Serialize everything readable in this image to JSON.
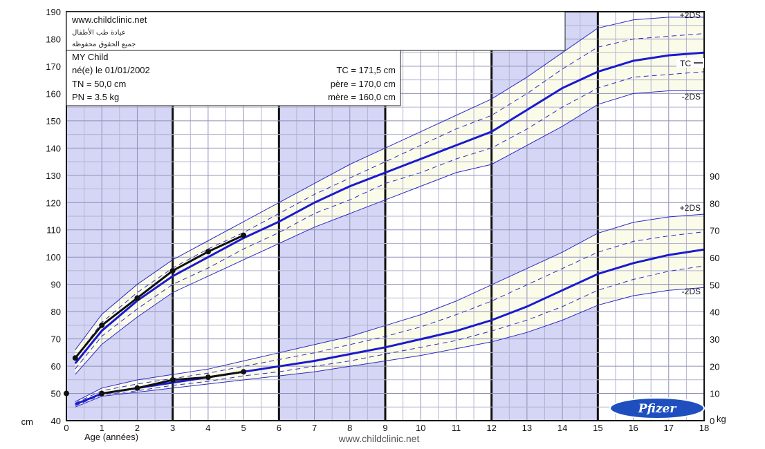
{
  "chart_data": {
    "type": "line",
    "header": {
      "site": "www.childclinic.net",
      "arabic_line1": "عيادة طب الأطفال",
      "arabic_line2": "جميع الحقوق محفوظة",
      "child_name": "MY Child",
      "birth": "né(e) le 01/01/2002",
      "tn": "TN = 50,0 cm",
      "pn": "PN = 3.5 kg",
      "tc": "TC = 171,5 cm",
      "pere": "père = 170,0 cm",
      "mere": "mère = 160,0 cm"
    },
    "xlabel": "Age (années)",
    "left_unit": "cm",
    "right_unit": "kg",
    "footer": "www.childclinic.net",
    "logo": "Pfizer",
    "xlim": [
      0,
      18
    ],
    "ylim_left": [
      40,
      190
    ],
    "ylim_right": [
      0,
      90
    ],
    "x_ticks": [
      0,
      1,
      2,
      3,
      4,
      5,
      6,
      7,
      8,
      9,
      10,
      11,
      12,
      13,
      14,
      15,
      16,
      17,
      18
    ],
    "y_ticks_left": [
      40,
      50,
      60,
      70,
      80,
      90,
      100,
      110,
      120,
      130,
      140,
      150,
      160,
      170,
      180,
      190
    ],
    "y_ticks_right": [
      0,
      10,
      20,
      30,
      40,
      50,
      60,
      70,
      80,
      90
    ],
    "grid": true,
    "labels": {
      "height_plus2": "+2DS",
      "height_minus2": "-2DS",
      "height_tc": "TC",
      "weight_plus2": "+2DS",
      "weight_minus2": "-2DS"
    },
    "colors": {
      "band": "#fbfbea",
      "column_shade": "#d5d5f5",
      "reference_line": "#2a2acc",
      "mean_line": "#1a1ad0",
      "patient_line": "#111111"
    },
    "height_reference": {
      "x": [
        0.25,
        1,
        2,
        3,
        4,
        5,
        6,
        7,
        8,
        9,
        10,
        11,
        12,
        13,
        14,
        15,
        16,
        17,
        18
      ],
      "plus2ds": [
        66,
        79,
        90,
        99,
        106,
        113,
        120,
        127,
        134,
        140,
        146,
        152,
        158,
        166,
        175,
        184,
        187,
        188,
        188
      ],
      "plus1ds": [
        63,
        76,
        87,
        96,
        103,
        109,
        116,
        123,
        129,
        135,
        141,
        147,
        152,
        160,
        169,
        177,
        180,
        181,
        182
      ],
      "mean": [
        61,
        73,
        84,
        93,
        100,
        107,
        113,
        120,
        126,
        131,
        136,
        141,
        146,
        154,
        162,
        168,
        172,
        174,
        175
      ],
      "minus1ds": [
        59,
        71,
        81,
        90,
        96,
        103,
        109,
        116,
        121,
        127,
        131,
        136,
        140,
        147,
        155,
        162,
        166,
        167,
        168
      ],
      "minus2ds": [
        57,
        68,
        78,
        87,
        93,
        99,
        105,
        111,
        116,
        121,
        126,
        131,
        134,
        141,
        148,
        156,
        160,
        161,
        161
      ]
    },
    "weight_reference_kg": {
      "x": [
        0.25,
        1,
        2,
        3,
        4,
        5,
        6,
        7,
        8,
        9,
        10,
        11,
        12,
        13,
        14,
        15,
        16,
        17,
        18
      ],
      "plus2ds": [
        7,
        12,
        15,
        17,
        19,
        22,
        25,
        28,
        31,
        35,
        39,
        44,
        50,
        56,
        62,
        69,
        73,
        75,
        76
      ],
      "plus1ds": [
        6.5,
        11,
        13.5,
        15.5,
        17.5,
        20,
        22.5,
        25,
        28,
        31,
        34.5,
        39,
        44,
        50,
        56,
        62,
        66,
        68,
        69.5
      ],
      "mean": [
        6,
        10,
        12,
        14,
        16,
        18,
        20,
        22,
        24.5,
        27,
        30,
        33,
        37,
        42,
        48,
        54,
        58,
        61,
        63
      ],
      "minus1ds": [
        5.5,
        9.5,
        11,
        13,
        14.5,
        16.5,
        18,
        20,
        22,
        24.5,
        27,
        29.5,
        33,
        37,
        42,
        48,
        52,
        55,
        57
      ],
      "minus2ds": [
        5,
        9,
        10.5,
        12,
        13.5,
        15,
        16.5,
        18,
        20,
        22,
        24,
        26.5,
        29,
        32.5,
        37,
        42.5,
        46,
        48,
        49
      ]
    },
    "patient_height_cm": {
      "x": [
        0.25,
        1,
        2,
        3,
        4,
        5
      ],
      "y": [
        63,
        75,
        85,
        95,
        102,
        108
      ]
    },
    "patient_weight_kg": {
      "x": [
        1,
        2,
        3,
        4,
        5
      ],
      "y": [
        10,
        12,
        15,
        16,
        18
      ]
    }
  }
}
